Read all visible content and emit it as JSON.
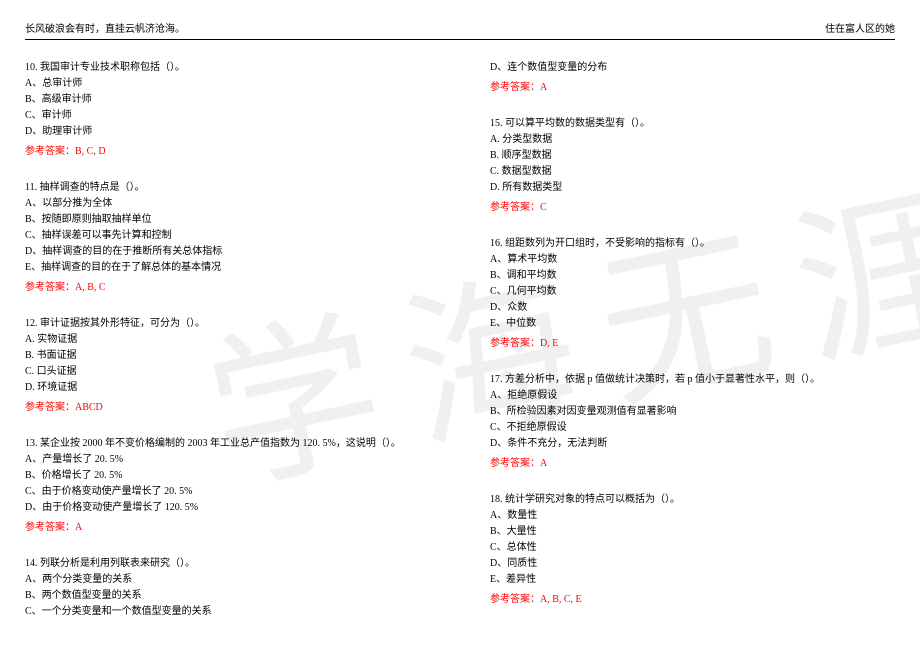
{
  "header": {
    "left": "长风破浪会有时，直挂云帆济沧海。",
    "right": "住在富人区的她"
  },
  "watermark": "学海无涯",
  "answer_prefix": "参考答案：",
  "left_questions": [
    {
      "title": "10. 我国审计专业技术职称包括（）。",
      "options": [
        "A、总审计师",
        "B、高级审计师",
        "C、审计师",
        "D、助理审计师"
      ],
      "answer": "B, C, D"
    },
    {
      "title": "11. 抽样调查的特点是（）。",
      "options": [
        "A、以部分推为全体",
        "B、按随即原则抽取抽样单位",
        "C、抽样误差可以事先计算和控制",
        "D、抽样调查的目的在于推断所有关总体指标",
        "E、抽样调查的目的在于了解总体的基本情况"
      ],
      "answer": "A, B, C"
    },
    {
      "title": "12. 审计证据按其外形特征，可分为（）。",
      "options": [
        "A. 实物证据",
        "B. 书面证据",
        "C. 口头证据",
        "D. 环境证据"
      ],
      "answer": "ABCD"
    },
    {
      "title": "13. 某企业按 2000 年不变价格编制的 2003 年工业总产值指数为 120. 5%，这说明（）。",
      "options": [
        "A、产量增长了 20. 5%",
        "B、价格增长了 20. 5%",
        "C、由于价格变动使产量增长了 20. 5%",
        "D、由于价格变动使产量增长了 120. 5%"
      ],
      "answer": "A"
    },
    {
      "title": "14. 列联分析是利用列联表来研究（）。",
      "options": [
        "A、两个分类变量的关系",
        "B、两个数值型变量的关系",
        "C、一个分类变量和一个数值型变量的关系"
      ],
      "answer": ""
    }
  ],
  "right_questions": [
    {
      "title": "",
      "options": [
        "D、连个数值型变量的分布"
      ],
      "answer": "A"
    },
    {
      "title": "15. 可以算平均数的数据类型有（）。",
      "options": [
        "A. 分类型数据",
        "B. 顺序型数据",
        "C. 数据型数据",
        "D. 所有数据类型"
      ],
      "answer": "C"
    },
    {
      "title": "16. 组距数列为开口组时，不受影响的指标有（）。",
      "options": [
        "A、算术平均数",
        "B、调和平均数",
        "C、几何平均数",
        "D、众数",
        "E、中位数"
      ],
      "answer": "D, E"
    },
    {
      "title": "17. 方差分析中，依据 p 值做统计决策时，若 p 值小于显著性水平，则（）。",
      "options": [
        "A、拒绝原假设",
        "B、所检验因素对因变量观测值有显著影响",
        "C、不拒绝原假设",
        "D、条件不充分，无法判断"
      ],
      "answer": "A"
    },
    {
      "title": "18. 统计学研究对象的特点可以概括为（）。",
      "options": [
        "A、数量性",
        "B、大量性",
        "C、总体性",
        "D、同质性",
        "E、差异性"
      ],
      "answer": "A, B, C, E"
    }
  ]
}
